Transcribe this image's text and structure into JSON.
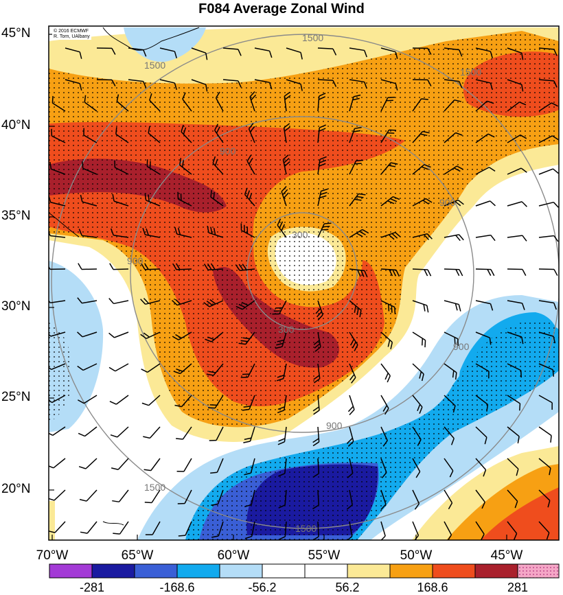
{
  "title": "F084 Average Zonal Wind",
  "credit": {
    "line1": "© 2016 ECMWF",
    "line2": "R. Torn, UAlbany"
  },
  "map": {
    "lat_labels": [
      "45°N",
      "40°N",
      "35°N",
      "30°N",
      "25°N",
      "20°N"
    ],
    "lon_labels": [
      "70°W",
      "65°W",
      "60°W",
      "55°W",
      "50°W",
      "45°W"
    ],
    "contour_labels": [
      "1500",
      "1500",
      "1500",
      "1500",
      "1500",
      "900",
      "900",
      "900",
      "900",
      "900",
      "300",
      "300"
    ]
  },
  "colorbar": {
    "tick_labels": [
      "-281",
      "-168.6",
      "-56.2",
      "56.2",
      "168.6",
      "281"
    ],
    "colors": [
      "#a33ad6",
      "#1a1aa0",
      "#3a5fd6",
      "#12aaee",
      "#b4ddf7",
      "#ffffff",
      "#ffffff",
      "#fbe996",
      "#f7a013",
      "#ef4d1d",
      "#a9202c",
      "#f4a6c6"
    ]
  },
  "style": {
    "positive_dark": "#a9202c",
    "positive_red": "#ef4d1d",
    "positive_orange": "#f7a013",
    "positive_light": "#fbe996",
    "negative_light": "#b4ddf7",
    "negative_cyan": "#12aaee",
    "negative_blue": "#3a5fd6",
    "negative_dark": "#1a1aa0"
  }
}
